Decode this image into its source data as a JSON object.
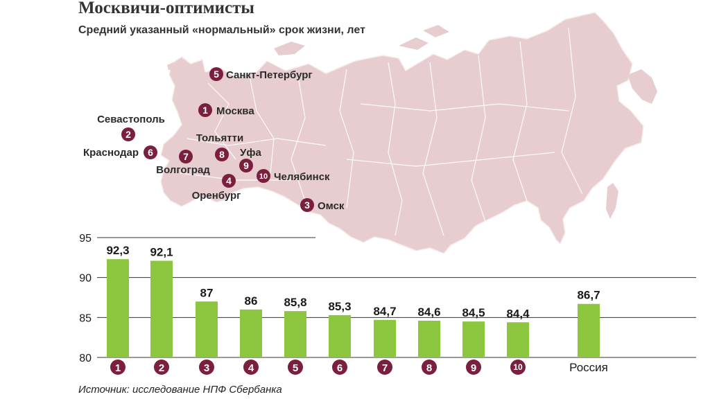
{
  "title": "Москвичи-оптимисты",
  "subtitle": "Средний указанный «нормальный» срок жизни, лет",
  "source": "Источник: исследование НПФ Сбербанка",
  "colors": {
    "bar": "#8cc63f",
    "badge": "#7a1f3d",
    "map_fill": "#e8cdd0",
    "map_stroke": "#ffffff"
  },
  "map": {
    "cities": [
      {
        "rank": "5",
        "name": "Санкт-Петербург",
        "label_side": "right"
      },
      {
        "rank": "1",
        "name": "Москва",
        "label_side": "right"
      },
      {
        "rank": "2",
        "name": "Севастополь",
        "label_side": "above"
      },
      {
        "rank": "6",
        "name": "Краснодар",
        "label_side": "left"
      },
      {
        "rank": "7",
        "name": "Волгоград",
        "label_side": "below"
      },
      {
        "rank": "8",
        "name": "Тольятти",
        "label_side": "above"
      },
      {
        "rank": "9",
        "name": "Уфа",
        "label_side": "above"
      },
      {
        "rank": "10",
        "name": "Челябинск",
        "label_side": "right"
      },
      {
        "rank": "4",
        "name": "Оренбург",
        "label_side": "below"
      },
      {
        "rank": "3",
        "name": "Омск",
        "label_side": "right"
      }
    ]
  },
  "chart_data": {
    "type": "bar",
    "categories": [
      "1",
      "2",
      "3",
      "4",
      "5",
      "6",
      "7",
      "8",
      "9",
      "10",
      "Россия"
    ],
    "values": [
      92.3,
      92.1,
      87,
      86,
      85.8,
      85.3,
      84.7,
      84.6,
      84.5,
      84.4,
      86.7
    ],
    "value_labels": [
      "92,3",
      "92,1",
      "87",
      "86",
      "85,8",
      "85,3",
      "84,7",
      "84,6",
      "84,5",
      "84,4",
      "86,7"
    ],
    "ylim": [
      80,
      95
    ],
    "yticks": [
      "80",
      "85",
      "90",
      "95"
    ],
    "grid": true,
    "title": "",
    "xlabel": "",
    "ylabel": ""
  }
}
